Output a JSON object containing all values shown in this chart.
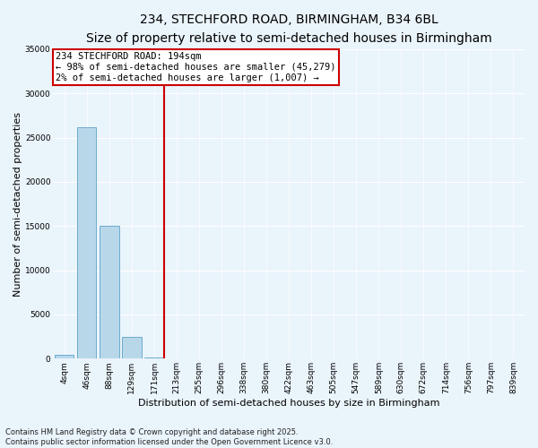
{
  "title": "234, STECHFORD ROAD, BIRMINGHAM, B34 6BL",
  "subtitle": "Size of property relative to semi-detached houses in Birmingham",
  "xlabel": "Distribution of semi-detached houses by size in Birmingham",
  "ylabel": "Number of semi-detached properties",
  "categories": [
    "4sqm",
    "46sqm",
    "88sqm",
    "129sqm",
    "171sqm",
    "213sqm",
    "255sqm",
    "296sqm",
    "338sqm",
    "380sqm",
    "422sqm",
    "463sqm",
    "505sqm",
    "547sqm",
    "589sqm",
    "630sqm",
    "672sqm",
    "714sqm",
    "756sqm",
    "797sqm",
    "839sqm"
  ],
  "bar_heights": [
    480,
    26200,
    15000,
    2450,
    180,
    40,
    15,
    8,
    4,
    2,
    1,
    1,
    0,
    0,
    0,
    0,
    0,
    0,
    0,
    0,
    0
  ],
  "bar_color": "#b8d8ea",
  "bar_edge_color": "#5ba3c9",
  "vline_x_index": 4.45,
  "vline_color": "#cc0000",
  "property_label": "234 STECHFORD ROAD: 194sqm",
  "annotation_line1": "← 98% of semi-detached houses are smaller (45,279)",
  "annotation_line2": "2% of semi-detached houses are larger (1,007) →",
  "ylim": [
    0,
    35000
  ],
  "yticks": [
    0,
    5000,
    10000,
    15000,
    20000,
    25000,
    30000,
    35000
  ],
  "footnote": "Contains HM Land Registry data © Crown copyright and database right 2025.\nContains public sector information licensed under the Open Government Licence v3.0.",
  "background_color": "#eaf4fb",
  "title_fontsize": 10,
  "subtitle_fontsize": 8.5,
  "axis_label_fontsize": 8,
  "tick_fontsize": 6.5,
  "footnote_fontsize": 6,
  "annotation_fontsize": 7.5
}
